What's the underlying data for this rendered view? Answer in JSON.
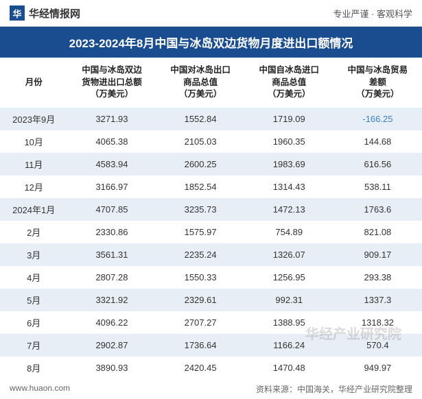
{
  "header": {
    "logo_char": "华",
    "logo_text": "华经情报网",
    "slogan": "专业严谨 · 客观科学"
  },
  "title": "2023-2024年8月中国与冰岛双边货物月度进出口额情况",
  "table": {
    "columns": [
      "月份",
      "中国与冰岛双边\n货物进出口总额\n（万美元）",
      "中国对冰岛出口\n商品总值\n（万美元）",
      "中国自冰岛进口\n商品总值\n（万美元）",
      "中国与冰岛贸易\n差额\n（万美元）"
    ],
    "rows": [
      [
        "2023年9月",
        "3271.93",
        "1552.84",
        "1719.09",
        "-166.25"
      ],
      [
        "10月",
        "4065.38",
        "2105.03",
        "1960.35",
        "144.68"
      ],
      [
        "11月",
        "4583.94",
        "2600.25",
        "1983.69",
        "616.56"
      ],
      [
        "12月",
        "3166.97",
        "1852.54",
        "1314.43",
        "538.11"
      ],
      [
        "2024年1月",
        "4707.85",
        "3235.73",
        "1472.13",
        "1763.6"
      ],
      [
        "2月",
        "2330.86",
        "1575.97",
        "754.89",
        "821.08"
      ],
      [
        "3月",
        "3561.31",
        "2235.24",
        "1326.07",
        "909.17"
      ],
      [
        "4月",
        "2807.28",
        "1550.33",
        "1256.95",
        "293.38"
      ],
      [
        "5月",
        "3321.92",
        "2329.61",
        "992.31",
        "1337.3"
      ],
      [
        "6月",
        "4096.22",
        "2707.27",
        "1388.95",
        "1318.32"
      ],
      [
        "7月",
        "2902.87",
        "1736.64",
        "1166.24",
        "570.4"
      ],
      [
        "8月",
        "3890.93",
        "2420.45",
        "1470.48",
        "949.97"
      ]
    ],
    "negative_cells": [
      [
        0,
        4
      ]
    ],
    "colors": {
      "header_bg": "#1a4d8f",
      "row_odd_bg": "#e8eef5",
      "row_even_bg": "#ffffff",
      "negative_text": "#3a7fc4",
      "text_color": "#333333"
    }
  },
  "footer": {
    "site": "www.huaon.com",
    "source": "资料来源：中国海关，华经产业研究院整理"
  },
  "watermark": "华经产业研究院"
}
